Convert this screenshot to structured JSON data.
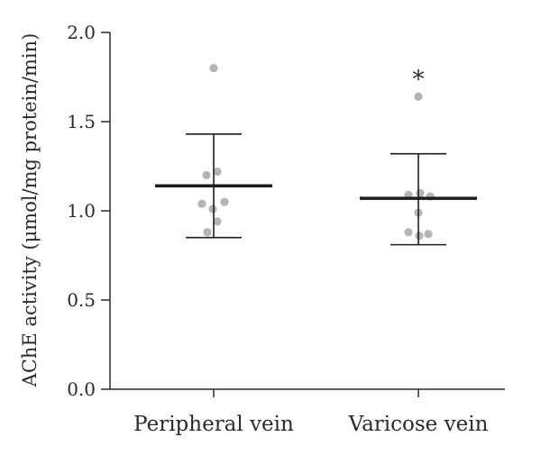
{
  "chart_data": {
    "type": "scatter",
    "title": "",
    "xlabel": "",
    "ylabel": "AChE activity (μmol/mg protein/min)",
    "ylim": [
      0.0,
      2.0
    ],
    "yticks": [
      "0.0",
      "0.5",
      "1.0",
      "1.5",
      "2.0"
    ],
    "categories": [
      "Peripheral vein",
      "Varicose vein"
    ],
    "series": [
      {
        "category": "Peripheral vein",
        "points": [
          1.8,
          1.22,
          1.2,
          1.05,
          1.04,
          1.01,
          0.94,
          0.88
        ],
        "mean": 1.14,
        "error_upper": 1.43,
        "error_lower": 0.85,
        "annotation": ""
      },
      {
        "category": "Varicose vein",
        "points": [
          1.64,
          1.1,
          1.09,
          1.08,
          0.99,
          0.88,
          0.87,
          0.86
        ],
        "mean": 1.07,
        "error_upper": 1.32,
        "error_lower": 0.81,
        "annotation": "*"
      }
    ],
    "grid": false,
    "colors": {
      "points": "#b5b5b5",
      "bars": "#1e1e1e",
      "axis": "#2b2b2b"
    }
  }
}
